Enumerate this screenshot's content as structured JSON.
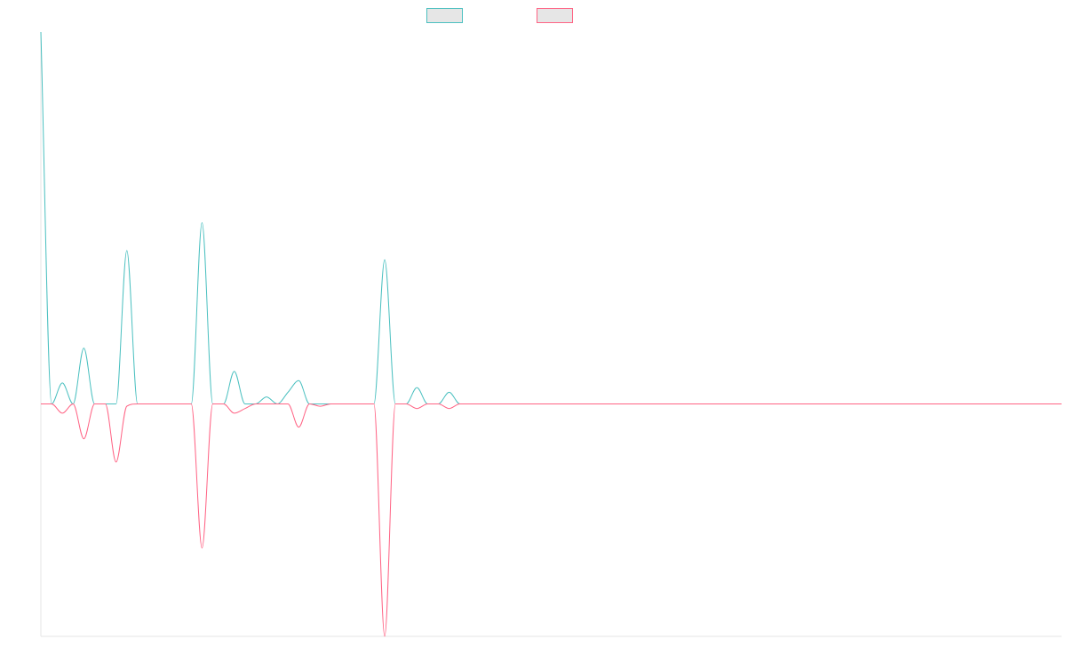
{
  "chart_data": {
    "type": "line",
    "title": "",
    "xlabel": "",
    "ylabel": "",
    "grid": false,
    "legend_position": "top-center",
    "x": [
      0,
      1,
      2,
      3,
      4,
      5,
      6,
      7,
      8,
      9,
      10,
      11,
      12,
      13,
      14,
      15,
      16,
      17,
      18,
      19,
      20,
      21,
      22,
      23,
      24,
      25,
      26,
      27,
      28,
      29,
      30,
      31,
      32,
      33,
      34,
      35,
      36,
      37,
      38,
      39,
      40,
      41,
      42,
      43,
      44,
      45,
      46,
      47,
      48,
      49,
      50,
      51,
      52,
      53,
      54,
      55,
      56,
      57,
      58,
      59,
      60,
      61,
      62,
      63,
      64,
      65,
      66,
      67,
      68,
      69,
      70,
      71,
      72,
      73,
      74,
      75,
      76,
      77,
      78,
      79,
      80,
      81,
      82,
      83,
      84,
      85,
      86,
      87,
      88,
      89,
      90,
      91,
      92,
      93,
      94,
      95
    ],
    "xlim": [
      0,
      95
    ],
    "ylim": [
      -100,
      160
    ],
    "series": [
      {
        "name": "",
        "color": "#4bc0c0",
        "values": [
          160,
          0,
          9,
          0,
          24,
          0,
          0,
          0,
          66,
          0,
          0,
          0,
          0,
          0,
          0,
          78,
          0,
          0,
          14,
          0,
          0,
          3,
          0,
          5,
          10,
          0,
          0,
          0,
          0,
          0,
          0,
          0,
          62,
          0,
          0,
          7,
          0,
          0,
          5,
          0,
          0,
          0,
          0,
          0,
          0,
          0,
          0,
          0,
          0,
          0,
          0,
          0,
          0,
          0,
          0,
          0,
          0,
          0,
          0,
          0,
          0,
          0,
          0,
          0,
          0,
          0,
          0,
          0,
          0,
          0,
          0,
          0,
          0,
          0,
          0,
          0,
          0,
          0,
          0,
          0,
          0,
          0,
          0,
          0,
          0,
          0,
          0,
          0,
          0,
          0,
          0,
          0,
          0,
          0,
          0,
          0
        ]
      },
      {
        "name": "",
        "color": "#ff6384",
        "values": [
          0,
          0,
          -4,
          0,
          -15,
          0,
          0,
          -25,
          -1,
          0,
          0,
          0,
          0,
          0,
          0,
          -62,
          0,
          0,
          -4,
          -2,
          0,
          0,
          0,
          0,
          -10,
          0,
          -1,
          0,
          0,
          0,
          0,
          0,
          -100,
          0,
          0,
          -2,
          0,
          0,
          -2,
          0,
          0,
          0,
          0,
          0,
          0,
          0,
          0,
          0,
          0,
          0,
          0,
          0,
          0,
          0,
          0,
          0,
          0,
          0,
          0,
          0,
          0,
          0,
          0,
          0,
          0,
          0,
          0,
          0,
          0,
          0,
          0,
          0,
          0,
          0,
          0,
          0,
          0,
          0,
          0,
          0,
          0,
          0,
          0,
          0,
          0,
          0,
          0,
          0,
          0,
          0,
          0,
          0,
          0,
          0,
          0,
          0
        ]
      }
    ]
  }
}
